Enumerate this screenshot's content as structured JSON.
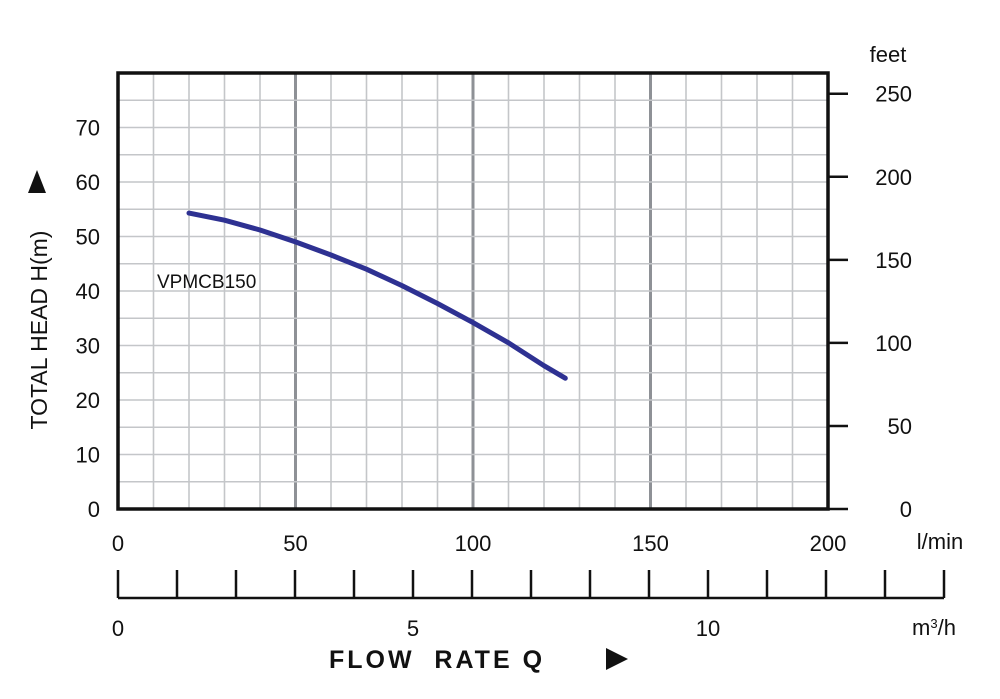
{
  "chart_data": {
    "type": "line",
    "y_left": {
      "title": "TOTAL HEAD H(m)",
      "ticks": [
        0,
        10,
        20,
        30,
        40,
        50,
        60,
        70
      ],
      "ylim": [
        0,
        80
      ]
    },
    "y_right": {
      "unit": "feet",
      "ticks": [
        0,
        50,
        100,
        150,
        200,
        250
      ]
    },
    "x_top": {
      "unit": "l/min",
      "ticks": [
        0,
        50,
        100,
        150,
        200
      ],
      "xlim": [
        0,
        200
      ]
    },
    "x_bottom": {
      "unit_base": "m",
      "unit_sup": "3",
      "unit_tail": "/h",
      "title": "FLOW  RATE Q",
      "labeled_ticks": [
        0,
        5,
        10
      ],
      "minor_step": 1,
      "range": [
        0,
        14
      ]
    },
    "grid": true,
    "series": [
      {
        "name": "VPMCB150",
        "color": "#2e3192",
        "x": [
          20,
          30,
          40,
          50,
          60,
          70,
          80,
          90,
          100,
          110,
          120,
          126
        ],
        "y": [
          54.3,
          53.0,
          51.2,
          49.0,
          46.6,
          44.0,
          41.0,
          37.7,
          34.2,
          30.5,
          26.3,
          24.0
        ]
      }
    ]
  }
}
